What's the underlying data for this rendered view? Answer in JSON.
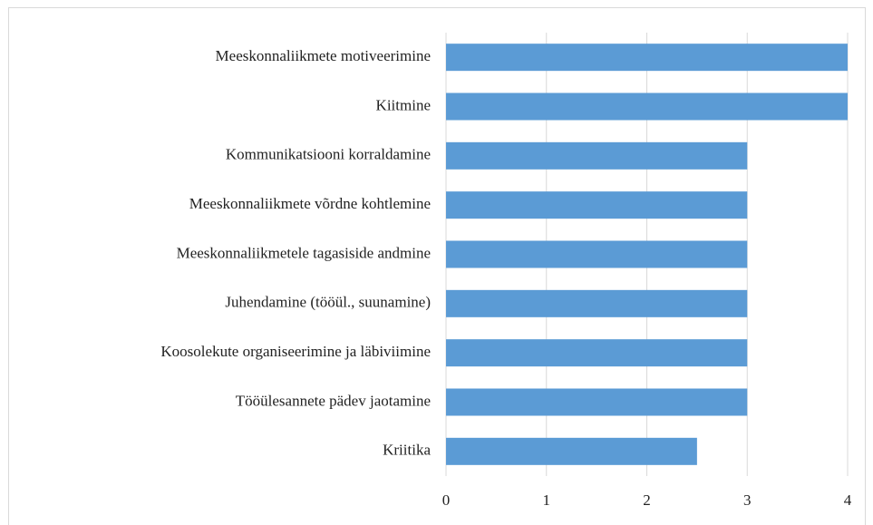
{
  "chart_data": {
    "type": "barh",
    "categories": [
      "Meeskonnaliikmete motiveerimine",
      "Kiitmine",
      "Kommunikatsiooni korraldamine",
      "Meeskonnaliikmete võrdne kohtlemine",
      "Meeskonnaliikmetele tagasiside andmine",
      "Juhendamine (tööül., suunamine)",
      "Koosolekute organiseerimine ja läbiviimine",
      "Tööülesannete pädev jaotamine",
      "Kriitika"
    ],
    "values": [
      4,
      4,
      3,
      3,
      3,
      3,
      3,
      3,
      2.5
    ],
    "color": "#5b9bd5",
    "xlim": [
      0,
      4
    ],
    "xticks": [
      0,
      1,
      2,
      3,
      4
    ],
    "grid": true
  }
}
